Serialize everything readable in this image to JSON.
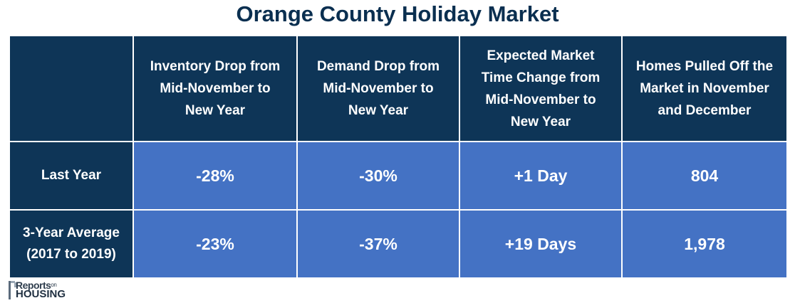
{
  "chart_data": {
    "type": "table",
    "title": "Orange County Holiday Market",
    "columns": [
      "",
      "Inventory Drop from Mid-November to New Year",
      "Demand Drop from Mid-November to New Year",
      "Expected Market Time Change from Mid-November to New Year",
      "Homes Pulled Off the Market in November and December"
    ],
    "rows": [
      {
        "label_lines": [
          "Last Year"
        ],
        "values": [
          "-28%",
          "-30%",
          "+1 Day",
          "804"
        ]
      },
      {
        "label_lines": [
          "3-Year Average",
          "(2017 to 2019)"
        ],
        "values": [
          "-23%",
          "-37%",
          "+19 Days",
          "1,978"
        ]
      }
    ],
    "header_lines": [
      [
        "Inventory Drop from",
        "Mid-November to",
        "New Year"
      ],
      [
        "Demand Drop from",
        "Mid-November to",
        "New Year"
      ],
      [
        "Expected Market",
        "Time Change from",
        "Mid-November to",
        "New Year"
      ],
      [
        "Homes Pulled Off the",
        "Market in November",
        "and December"
      ]
    ]
  },
  "logo": {
    "top_text": "Reports",
    "on_text": "on",
    "bottom_text": "HOUSING"
  },
  "colors": {
    "title": "#0a2f50",
    "header_bg": "#0e3557",
    "cell_bg": "#4472c4",
    "text_light": "#ffffff"
  }
}
